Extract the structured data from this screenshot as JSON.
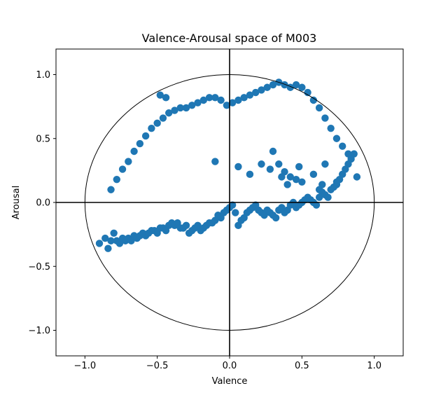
{
  "chart_data": {
    "type": "scatter",
    "title": "Valence-Arousal space of M003",
    "xlabel": "Valence",
    "ylabel": "Arousal",
    "xlim": [
      -1.2,
      1.2
    ],
    "ylim": [
      -1.2,
      1.2
    ],
    "xticks": [
      "−1.0",
      "−0.5",
      "0.0",
      "0.5",
      "1.0"
    ],
    "yticks": [
      "−1.0",
      "−0.5",
      "0.0",
      "0.5",
      "1.0"
    ],
    "xtick_values": [
      -1.0,
      -0.5,
      0.0,
      0.5,
      1.0
    ],
    "ytick_values": [
      -1.0,
      -0.5,
      0.0,
      0.5,
      1.0
    ],
    "grid": false,
    "reference_circle_radius": 1.0,
    "reference_axes": [
      0,
      0
    ],
    "point_color": "#1f77b4",
    "x": [
      -0.9,
      -0.86,
      -0.84,
      -0.82,
      -0.8,
      -0.78,
      -0.76,
      -0.74,
      -0.72,
      -0.7,
      -0.68,
      -0.66,
      -0.64,
      -0.62,
      -0.6,
      -0.58,
      -0.56,
      -0.54,
      -0.52,
      -0.5,
      -0.48,
      -0.46,
      -0.44,
      -0.42,
      -0.4,
      -0.38,
      -0.36,
      -0.34,
      -0.32,
      -0.3,
      -0.28,
      -0.26,
      -0.24,
      -0.22,
      -0.2,
      -0.18,
      -0.16,
      -0.14,
      -0.12,
      -0.1,
      -0.08,
      -0.06,
      -0.04,
      -0.02,
      0.0,
      0.02,
      0.04,
      0.06,
      0.08,
      0.1,
      0.12,
      0.14,
      0.16,
      0.18,
      0.2,
      0.22,
      0.24,
      0.26,
      0.28,
      0.3,
      0.32,
      0.34,
      0.36,
      0.38,
      0.4,
      0.42,
      0.44,
      0.46,
      0.48,
      0.5,
      0.52,
      0.54,
      0.56,
      0.58,
      0.6,
      0.62,
      0.64,
      0.66,
      0.68,
      0.7,
      0.72,
      0.74,
      0.76,
      0.78,
      0.8,
      0.82,
      0.84,
      0.86,
      -0.82,
      -0.78,
      -0.74,
      -0.7,
      -0.66,
      -0.62,
      -0.58,
      -0.54,
      -0.5,
      -0.46,
      -0.42,
      -0.38,
      -0.34,
      -0.3,
      -0.26,
      -0.22,
      -0.18,
      -0.14,
      -0.1,
      -0.06,
      -0.02,
      0.02,
      0.06,
      0.1,
      0.14,
      0.18,
      0.22,
      0.26,
      0.3,
      0.34,
      0.38,
      0.42,
      0.46,
      0.5,
      0.54,
      0.58,
      0.62,
      0.66,
      0.7,
      0.74,
      0.78,
      0.82,
      -0.48,
      -0.44,
      0.3,
      0.34,
      0.38,
      0.42,
      0.46,
      0.5,
      0.62,
      0.64,
      -0.1,
      0.06,
      0.14,
      0.22,
      0.28,
      0.36,
      0.4,
      0.48,
      0.58,
      0.66,
      0.74,
      0.88
    ],
    "y": [
      -0.32,
      -0.28,
      -0.36,
      -0.3,
      -0.24,
      -0.3,
      -0.32,
      -0.28,
      -0.3,
      -0.28,
      -0.3,
      -0.26,
      -0.28,
      -0.26,
      -0.24,
      -0.26,
      -0.24,
      -0.22,
      -0.22,
      -0.24,
      -0.2,
      -0.2,
      -0.22,
      -0.18,
      -0.16,
      -0.18,
      -0.16,
      -0.2,
      -0.2,
      -0.18,
      -0.24,
      -0.22,
      -0.2,
      -0.18,
      -0.22,
      -0.2,
      -0.18,
      -0.16,
      -0.16,
      -0.14,
      -0.1,
      -0.12,
      -0.08,
      -0.06,
      -0.04,
      -0.02,
      -0.08,
      -0.18,
      -0.14,
      -0.12,
      -0.08,
      -0.06,
      -0.04,
      -0.02,
      -0.06,
      -0.08,
      -0.1,
      -0.06,
      -0.08,
      -0.1,
      -0.12,
      -0.06,
      -0.04,
      -0.08,
      -0.06,
      -0.02,
      0.0,
      -0.04,
      -0.02,
      0.0,
      0.02,
      0.04,
      0.02,
      0.0,
      -0.02,
      0.04,
      0.08,
      0.06,
      0.04,
      0.1,
      0.12,
      0.14,
      0.18,
      0.22,
      0.26,
      0.3,
      0.34,
      0.38,
      0.1,
      0.18,
      0.26,
      0.32,
      0.4,
      0.46,
      0.52,
      0.58,
      0.62,
      0.66,
      0.7,
      0.72,
      0.74,
      0.74,
      0.76,
      0.78,
      0.8,
      0.82,
      0.82,
      0.8,
      0.76,
      0.78,
      0.8,
      0.82,
      0.84,
      0.86,
      0.88,
      0.9,
      0.92,
      0.94,
      0.92,
      0.9,
      0.92,
      0.9,
      0.86,
      0.8,
      0.74,
      0.66,
      0.58,
      0.5,
      0.44,
      0.38,
      0.84,
      0.82,
      0.4,
      0.3,
      0.24,
      0.2,
      0.18,
      0.16,
      0.1,
      0.14,
      0.32,
      0.28,
      0.22,
      0.3,
      0.26,
      0.2,
      0.14,
      0.28,
      0.22,
      0.3,
      0.16,
      0.2
    ]
  }
}
